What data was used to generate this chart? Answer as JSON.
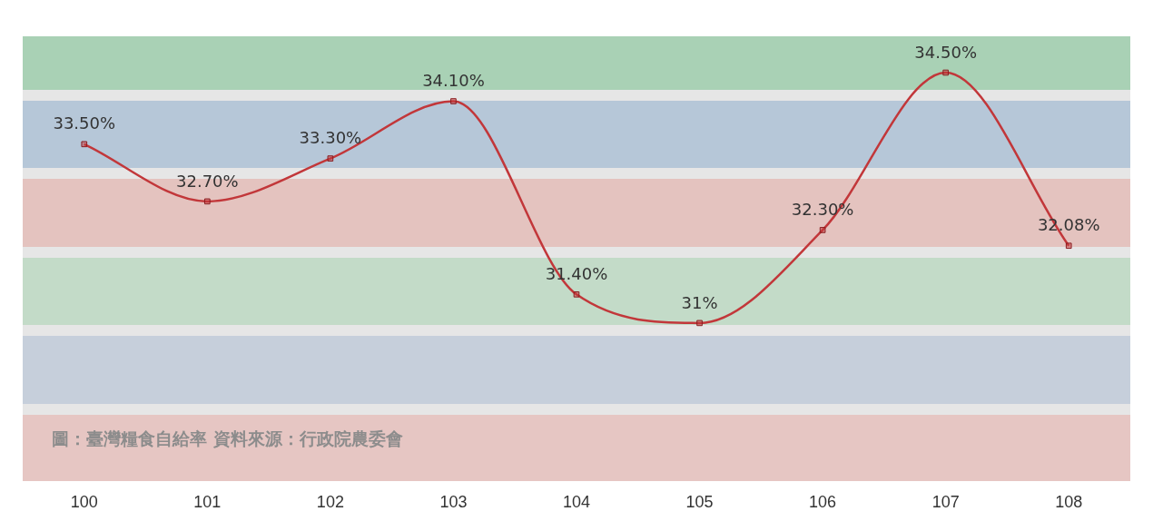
{
  "chart_data": {
    "type": "line",
    "categories": [
      "100",
      "101",
      "102",
      "103",
      "104",
      "105",
      "106",
      "107",
      "108"
    ],
    "series": [
      {
        "color": "#c2373a",
        "values": [
          33.5,
          32.7,
          33.3,
          34.1,
          31.4,
          31,
          32.3,
          34.5,
          32.08
        ],
        "value_labels": [
          "33.50%",
          "32.70%",
          "33.30%",
          "34.10%",
          "31.40%",
          "31%",
          "32.30%",
          "34.50%",
          "32.08%"
        ]
      }
    ],
    "marker": "square",
    "line_style": "solid",
    "grid": false,
    "legend": false,
    "tick_labels": "x",
    "annotations": [
      "圖：臺灣糧食自給率 資料來源：行政院農委會"
    ]
  }
}
